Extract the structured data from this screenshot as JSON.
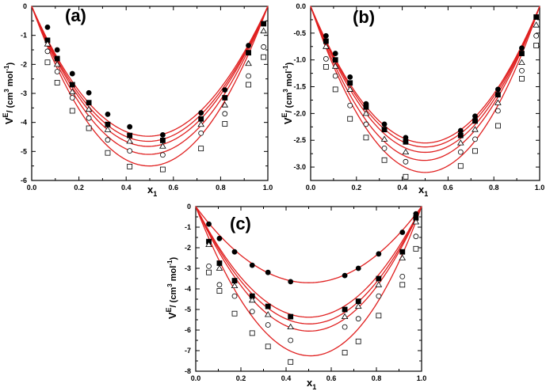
{
  "chart_data": [
    {
      "type": "scatter",
      "panel_label": "(a)",
      "xlabel": "x",
      "xlabel_sub": "1",
      "ylabel": "V",
      "ylabel_sup": "E",
      "ylabel_unit_pre": "/ (cm",
      "ylabel_unit_sup3": "3",
      "ylabel_unit_mid": " mol",
      "ylabel_unit_sup": "-1",
      "ylabel_unit_post": ")",
      "xlim": [
        0,
        1
      ],
      "ylim": [
        -6,
        0
      ],
      "xticks": [
        0.0,
        0.2,
        0.4,
        0.6,
        0.8,
        1.0
      ],
      "xtick_labels": [
        "0.0",
        "0.2",
        "0.4",
        "0.6",
        "0.8",
        "1.0"
      ],
      "yticks": [
        0,
        -1,
        -2,
        -3,
        -4,
        -5,
        -6
      ],
      "ytick_labels": [
        "0",
        "-1",
        "-2",
        "-3",
        "-4",
        "-5",
        "-6"
      ],
      "series": [
        {
          "name": "series 1",
          "marker": "circle-filled",
          "fit_A": [
            -17.9,
            0.5,
            0,
            0
          ],
          "x": [
            0.067,
            0.108,
            0.172,
            0.242,
            0.322,
            0.415,
            0.555,
            0.717,
            0.818,
            0.918
          ],
          "y": [
            -0.72,
            -1.5,
            -2.32,
            -2.98,
            -3.72,
            -4.15,
            -4.43,
            -3.67,
            -2.88,
            -1.35
          ]
        },
        {
          "name": "series 2",
          "marker": "square-filled",
          "fit_A": [
            -18.6,
            0.5,
            0,
            0
          ],
          "x": [
            0.067,
            0.108,
            0.172,
            0.242,
            0.322,
            0.415,
            0.555,
            0.717,
            0.818,
            0.918,
            0.982
          ],
          "y": [
            -1.17,
            -1.8,
            -2.7,
            -3.32,
            -4.07,
            -4.45,
            -4.62,
            -3.88,
            -3.15,
            -1.6,
            -0.6
          ]
        },
        {
          "name": "series 3",
          "marker": "triangle-open",
          "fit_A": [
            -19.3,
            0.5,
            0,
            0
          ],
          "x": [
            0.067,
            0.108,
            0.172,
            0.242,
            0.322,
            0.415,
            0.555,
            0.717,
            0.818,
            0.918,
            0.982
          ],
          "y": [
            -1.3,
            -2.0,
            -2.95,
            -3.55,
            -4.25,
            -4.65,
            -4.82,
            -4.07,
            -3.4,
            -1.97,
            -0.85
          ]
        },
        {
          "name": "series 4",
          "marker": "circle-open",
          "fit_A": [
            -20.4,
            0.4,
            0,
            0
          ],
          "x": [
            0.067,
            0.108,
            0.172,
            0.242,
            0.322,
            0.415,
            0.555,
            0.717,
            0.818,
            0.918,
            0.982
          ],
          "y": [
            -1.55,
            -2.25,
            -3.15,
            -3.85,
            -4.6,
            -4.98,
            -5.12,
            -4.37,
            -3.7,
            -2.4,
            -1.4
          ]
        },
        {
          "name": "series 5",
          "marker": "square-open",
          "fit_A": [
            -22.0,
            0.2,
            0,
            0
          ],
          "x": [
            0.067,
            0.108,
            0.172,
            0.242,
            0.322,
            0.415,
            0.555,
            0.717,
            0.818,
            0.918,
            0.982
          ],
          "y": [
            -1.93,
            -2.63,
            -3.6,
            -4.2,
            -5.05,
            -5.52,
            -5.62,
            -4.9,
            -4.05,
            -2.7,
            -1.75
          ]
        }
      ]
    },
    {
      "type": "scatter",
      "panel_label": "(b)",
      "xlabel": "x",
      "xlabel_sub": "1",
      "ylabel": "V",
      "ylabel_sup": "E",
      "ylabel_unit_pre": "/ (cm",
      "ylabel_unit_sup3": "3",
      "ylabel_unit_mid": " mol",
      "ylabel_unit_sup": "-1",
      "ylabel_unit_post": ")",
      "xlim": [
        0,
        1
      ],
      "ylim": [
        -3.25,
        0
      ],
      "xticks": [
        0.0,
        0.2,
        0.4,
        0.6,
        0.8,
        1.0
      ],
      "xtick_labels": [
        "0.0",
        "0.2",
        "0.4",
        "0.6",
        "0.8",
        "1.0"
      ],
      "yticks": [
        0,
        -0.5,
        -1.0,
        -1.5,
        -2.0,
        -2.5,
        -3.0
      ],
      "ytick_labels": [
        "0.0",
        "-0.5",
        "-1.0",
        "-1.5",
        "-2.0",
        "-2.5",
        "-3.0"
      ],
      "series": [
        {
          "name": "series 1",
          "marker": "circle-filled",
          "fit_A": [
            -10.2,
            0,
            0,
            0
          ],
          "x": [
            0.067,
            0.108,
            0.172,
            0.242,
            0.322,
            0.415,
            0.655,
            0.718,
            0.818,
            0.922
          ],
          "y": [
            -0.55,
            -0.88,
            -1.32,
            -1.82,
            -2.2,
            -2.45,
            -2.32,
            -2.05,
            -1.55,
            -0.78
          ]
        },
        {
          "name": "series 2",
          "marker": "square-filled",
          "fit_A": [
            -10.5,
            0,
            0,
            0
          ],
          "x": [
            0.067,
            0.108,
            0.172,
            0.242,
            0.322,
            0.415,
            0.655,
            0.718,
            0.818,
            0.922,
            0.985
          ],
          "y": [
            -0.65,
            -1.0,
            -1.43,
            -1.88,
            -2.3,
            -2.53,
            -2.41,
            -2.14,
            -1.65,
            -0.88,
            -0.2
          ]
        },
        {
          "name": "series 3",
          "marker": "triangle-open",
          "fit_A": [
            -10.9,
            0,
            0,
            0
          ],
          "x": [
            0.067,
            0.108,
            0.172,
            0.242,
            0.322,
            0.415,
            0.655,
            0.718,
            0.818,
            0.922,
            0.985
          ],
          "y": [
            -0.75,
            -1.12,
            -1.55,
            -2.0,
            -2.48,
            -2.72,
            -2.55,
            -2.3,
            -1.8,
            -1.05,
            -0.35
          ]
        },
        {
          "name": "series 4",
          "marker": "circle-open",
          "fit_A": [
            -11.5,
            0.2,
            0,
            0
          ],
          "x": [
            0.067,
            0.108,
            0.172,
            0.242,
            0.322,
            0.415,
            0.655,
            0.718,
            0.818,
            0.922,
            0.985
          ],
          "y": [
            -0.98,
            -1.3,
            -1.85,
            -2.2,
            -2.65,
            -2.9,
            -2.72,
            -2.48,
            -1.95,
            -1.2,
            -0.55
          ]
        },
        {
          "name": "series 5",
          "marker": "square-open",
          "fit_A": [
            -12.4,
            0,
            0,
            0
          ],
          "x": [
            0.067,
            0.108,
            0.172,
            0.242,
            0.322,
            0.415,
            0.655,
            0.718,
            0.818,
            0.922,
            0.985
          ],
          "y": [
            -1.13,
            -1.55,
            -2.1,
            -2.45,
            -2.87,
            -3.18,
            -2.98,
            -2.7,
            -2.23,
            -1.35,
            -0.73
          ]
        }
      ]
    },
    {
      "type": "scatter",
      "panel_label": "(c)",
      "xlabel": "x",
      "xlabel_sub": "1",
      "ylabel": "V",
      "ylabel_sup": "E",
      "ylabel_unit_pre": "/ (cm",
      "ylabel_unit_sup3": "3",
      "ylabel_unit_mid": " mol",
      "ylabel_unit_sup": "-1",
      "ylabel_unit_post": ")",
      "xlim": [
        0,
        1
      ],
      "ylim": [
        -8,
        0
      ],
      "xticks": [
        0.0,
        0.2,
        0.4,
        0.6,
        0.8,
        1.0
      ],
      "xtick_labels": [
        "0.0",
        "0.2",
        "0.4",
        "0.6",
        "0.8",
        "1.0"
      ],
      "yticks": [
        0,
        -1,
        -2,
        -3,
        -4,
        -5,
        -6,
        -7,
        -8
      ],
      "ytick_labels": [
        "0",
        "-1",
        "-2",
        "-3",
        "-4",
        "-5",
        "-6",
        "-7",
        "-8"
      ],
      "series": [
        {
          "name": "series 1",
          "marker": "circle-filled",
          "fit_A": [
            -14.8,
            0,
            0,
            0
          ],
          "x": [
            0.058,
            0.105,
            0.172,
            0.25,
            0.32,
            0.42,
            0.66,
            0.72,
            0.81,
            0.915,
            0.975
          ],
          "y": [
            -0.85,
            -1.55,
            -2.2,
            -2.85,
            -3.2,
            -3.65,
            -3.35,
            -3.0,
            -2.3,
            -1.25,
            -0.35
          ]
        },
        {
          "name": "series 2",
          "marker": "square-filled",
          "fit_A": [
            -21.5,
            0,
            0,
            0
          ],
          "x": [
            0.058,
            0.105,
            0.172,
            0.25,
            0.32,
            0.42,
            0.66,
            0.72,
            0.81,
            0.915,
            0.975
          ],
          "y": [
            -1.7,
            -2.75,
            -3.6,
            -4.35,
            -4.85,
            -5.35,
            -5.0,
            -4.6,
            -3.5,
            -2.2,
            -0.55
          ]
        },
        {
          "name": "series 3",
          "marker": "triangle-open",
          "fit_A": [
            -22.8,
            -0.3,
            0,
            0
          ],
          "x": [
            0.058,
            0.105,
            0.172,
            0.25,
            0.32,
            0.42,
            0.66,
            0.72,
            0.81,
            0.915,
            0.975
          ],
          "y": [
            -1.85,
            -3.0,
            -3.85,
            -4.55,
            -5.25,
            -5.85,
            -5.35,
            -4.85,
            -3.8,
            -2.5,
            -0.75
          ]
        },
        {
          "name": "series 4",
          "marker": "circle-open",
          "fit_A": [
            -24.2,
            -0.3,
            0,
            0
          ],
          "x": [
            0.058,
            0.105,
            0.172,
            0.25,
            0.32,
            0.42,
            0.66,
            0.72,
            0.81,
            0.915,
            0.975
          ],
          "y": [
            -2.9,
            -3.8,
            -4.35,
            -5.1,
            -5.75,
            -6.5,
            -5.85,
            -5.45,
            -4.35,
            -3.4,
            -1.45
          ]
        },
        {
          "name": "series 5",
          "marker": "square-open",
          "fit_A": [
            -29.0,
            -1.0,
            0,
            0
          ],
          "x": [
            0.058,
            0.105,
            0.172,
            0.25,
            0.32,
            0.42,
            0.66,
            0.72,
            0.81,
            0.915,
            0.975
          ],
          "y": [
            -3.2,
            -4.1,
            -5.2,
            -6.15,
            -6.8,
            -7.55,
            -7.1,
            -6.55,
            -5.3,
            -3.8,
            -2.05
          ]
        }
      ]
    }
  ]
}
